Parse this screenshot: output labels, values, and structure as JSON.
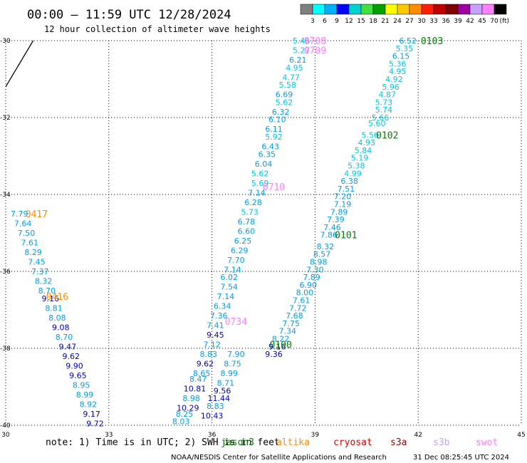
{
  "title": "00:00 – 11:59 UTC 12/28/2024",
  "subtitle": "12 hour collection of altimeter wave heights",
  "footer_note": "note: 1) Time is in UTC; 2) SWH is in feet",
  "footer_credit": "NOAA/NESDIS Center for Satellite Applications and Research",
  "footer_timestamp": "31 Dec 08:25:45 UTC 2024",
  "colorbar": {
    "unit": "(ft)",
    "labels": [
      "3",
      "6",
      "9",
      "12",
      "15",
      "18",
      "21",
      "24",
      "27",
      "30",
      "33",
      "36",
      "39",
      "42",
      "45",
      "70"
    ],
    "colors": [
      "#808080",
      "#00ffff",
      "#00b0ff",
      "#0000ff",
      "#00d0d0",
      "#40e040",
      "#00a000",
      "#ffff00",
      "#ffc800",
      "#ff8c00",
      "#ff2000",
      "#c00000",
      "#800000",
      "#a000a0",
      "#c8a0ff",
      "#ff80ff",
      "#000000"
    ]
  },
  "satellites": [
    {
      "name": "jason3",
      "color": "#008000"
    },
    {
      "name": "altika",
      "color": "#ff8c00"
    },
    {
      "name": "cryosat",
      "color": "#e00000"
    },
    {
      "name": "s3a",
      "color": "#a00000"
    },
    {
      "name": "s3b",
      "color": "#c8a0ff"
    },
    {
      "name": "swot",
      "color": "#ff80ff"
    }
  ],
  "chart_data": {
    "type": "scatter",
    "title": "00:00 – 11:59 UTC 12/28/2024",
    "subtitle": "12 hour collection of altimeter wave heights",
    "xlim": [
      30,
      45
    ],
    "ylim": [
      -40,
      -30
    ],
    "x_ticks": [
      "30",
      "33",
      "36",
      "39",
      "42",
      "45"
    ],
    "y_ticks": [
      "-30",
      "-32",
      "-34",
      "-36",
      "-38",
      "-40"
    ],
    "grid": true,
    "unit": "ft",
    "tracks": [
      {
        "id": "0708",
        "satellite": "swot",
        "label_lon": 39.0,
        "label_lat": -30.0
      },
      {
        "id": "0709",
        "satellite": "swot",
        "label_lon": 39.0,
        "label_lat": -30.25
      },
      {
        "id": "0710",
        "satellite": "swot",
        "label_lon": 37.8,
        "label_lat": -33.8
      },
      {
        "id": "0734",
        "satellite": "swot",
        "label_lon": 36.7,
        "label_lat": -37.3
      },
      {
        "id": "0103",
        "satellite": "jason3",
        "label_lon": 42.4,
        "label_lat": -30.0
      },
      {
        "id": "0102",
        "satellite": "jason3",
        "label_lon": 41.1,
        "label_lat": -32.45
      },
      {
        "id": "0101",
        "satellite": "jason3",
        "label_lon": 39.9,
        "label_lat": -35.05
      },
      {
        "id": "0100",
        "satellite": "jason3",
        "label_lon": 38.0,
        "label_lat": -37.9
      },
      {
        "id": "0417",
        "satellite": "altika",
        "label_lon": 30.9,
        "label_lat": -34.5
      },
      {
        "id": "0416",
        "satellite": "altika",
        "label_lon": 31.5,
        "label_lat": -36.65
      }
    ],
    "points": [
      {
        "lon": 38.6,
        "lat": -30.0,
        "swh": "5.46"
      },
      {
        "lon": 38.6,
        "lat": -30.25,
        "swh": "5.27"
      },
      {
        "lon": 38.5,
        "lat": -30.5,
        "swh": "6.21"
      },
      {
        "lon": 38.4,
        "lat": -30.7,
        "swh": "4.95"
      },
      {
        "lon": 38.3,
        "lat": -30.95,
        "swh": "4.77"
      },
      {
        "lon": 38.2,
        "lat": -31.15,
        "swh": "5.58"
      },
      {
        "lon": 38.1,
        "lat": -31.4,
        "swh": "6.69"
      },
      {
        "lon": 38.1,
        "lat": -31.6,
        "swh": "5.62"
      },
      {
        "lon": 38.0,
        "lat": -31.85,
        "swh": "6.32"
      },
      {
        "lon": 37.9,
        "lat": -32.05,
        "swh": "6.10"
      },
      {
        "lon": 37.8,
        "lat": -32.3,
        "swh": "6.11"
      },
      {
        "lon": 37.8,
        "lat": -32.5,
        "swh": "5.92"
      },
      {
        "lon": 37.7,
        "lat": -32.75,
        "swh": "6.43"
      },
      {
        "lon": 37.6,
        "lat": -32.95,
        "swh": "6.35"
      },
      {
        "lon": 37.5,
        "lat": -33.2,
        "swh": "6.04"
      },
      {
        "lon": 37.4,
        "lat": -33.45,
        "swh": "5.62"
      },
      {
        "lon": 37.4,
        "lat": -33.7,
        "swh": "5.69"
      },
      {
        "lon": 37.3,
        "lat": -33.95,
        "swh": "7.14"
      },
      {
        "lon": 37.2,
        "lat": -34.2,
        "swh": "6.28"
      },
      {
        "lon": 37.1,
        "lat": -34.45,
        "swh": "5.73"
      },
      {
        "lon": 37.0,
        "lat": -34.7,
        "swh": "6.78"
      },
      {
        "lon": 37.0,
        "lat": -34.95,
        "swh": "6.60"
      },
      {
        "lon": 36.9,
        "lat": -35.2,
        "swh": "6.25"
      },
      {
        "lon": 36.8,
        "lat": -35.45,
        "swh": "6.29"
      },
      {
        "lon": 36.7,
        "lat": -35.7,
        "swh": "7.70"
      },
      {
        "lon": 36.6,
        "lat": -35.95,
        "swh": "7.14"
      },
      {
        "lon": 36.5,
        "lat": -36.15,
        "swh": "6.02"
      },
      {
        "lon": 36.5,
        "lat": -36.4,
        "swh": "7.54"
      },
      {
        "lon": 36.4,
        "lat": -36.65,
        "swh": "7.14"
      },
      {
        "lon": 36.3,
        "lat": -36.9,
        "swh": "6.34"
      },
      {
        "lon": 36.2,
        "lat": -37.15,
        "swh": "7.36"
      },
      {
        "lon": 36.1,
        "lat": -37.4,
        "swh": "7.41"
      },
      {
        "lon": 36.1,
        "lat": -37.65,
        "swh": "9.45"
      },
      {
        "lon": 36.0,
        "lat": -37.9,
        "swh": "7.12"
      },
      {
        "lon": 35.9,
        "lat": -38.15,
        "swh": "8.83"
      },
      {
        "lon": 35.8,
        "lat": -38.4,
        "swh": "9.62"
      },
      {
        "lon": 35.7,
        "lat": -38.65,
        "swh": "8.65"
      },
      {
        "lon": 35.6,
        "lat": -38.8,
        "swh": "8.47"
      },
      {
        "lon": 35.5,
        "lat": -39.05,
        "swh": "10.81"
      },
      {
        "lon": 35.4,
        "lat": -39.3,
        "swh": "8.98"
      },
      {
        "lon": 35.3,
        "lat": -39.55,
        "swh": "10.29"
      },
      {
        "lon": 35.2,
        "lat": -39.7,
        "swh": "8.25"
      },
      {
        "lon": 35.1,
        "lat": -39.9,
        "swh": "8.03"
      },
      {
        "lon": 41.7,
        "lat": -30.0,
        "swh": "6.52"
      },
      {
        "lon": 41.6,
        "lat": -30.2,
        "swh": "5.35"
      },
      {
        "lon": 41.5,
        "lat": -30.4,
        "swh": "6.15"
      },
      {
        "lon": 41.4,
        "lat": -30.6,
        "swh": "5.36"
      },
      {
        "lon": 41.4,
        "lat": -30.8,
        "swh": "4.95"
      },
      {
        "lon": 41.3,
        "lat": -31.0,
        "swh": "4.92"
      },
      {
        "lon": 41.2,
        "lat": -31.2,
        "swh": "5.96"
      },
      {
        "lon": 41.1,
        "lat": -31.4,
        "swh": "4.87"
      },
      {
        "lon": 41.0,
        "lat": -31.6,
        "swh": "5.73"
      },
      {
        "lon": 41.0,
        "lat": -31.8,
        "swh": "5.74"
      },
      {
        "lon": 40.9,
        "lat": -32.0,
        "swh": "5.66"
      },
      {
        "lon": 40.8,
        "lat": -32.15,
        "swh": "5.60"
      },
      {
        "lon": 40.6,
        "lat": -32.45,
        "swh": "5.56"
      },
      {
        "lon": 40.5,
        "lat": -32.65,
        "swh": "4.93"
      },
      {
        "lon": 40.4,
        "lat": -32.85,
        "swh": "5.84"
      },
      {
        "lon": 40.3,
        "lat": -33.05,
        "swh": "5.19"
      },
      {
        "lon": 40.2,
        "lat": -33.25,
        "swh": "5.38"
      },
      {
        "lon": 40.1,
        "lat": -33.45,
        "swh": "4.99"
      },
      {
        "lon": 40.0,
        "lat": -33.65,
        "swh": "6.38"
      },
      {
        "lon": 39.9,
        "lat": -33.85,
        "swh": "7.51"
      },
      {
        "lon": 39.8,
        "lat": -34.05,
        "swh": "7.20"
      },
      {
        "lon": 39.8,
        "lat": -34.25,
        "swh": "7.19"
      },
      {
        "lon": 39.7,
        "lat": -34.45,
        "swh": "7.89"
      },
      {
        "lon": 39.6,
        "lat": -34.65,
        "swh": "7.39"
      },
      {
        "lon": 39.5,
        "lat": -34.85,
        "swh": "7.46"
      },
      {
        "lon": 39.4,
        "lat": -35.05,
        "swh": "7.86"
      },
      {
        "lon": 39.3,
        "lat": -35.35,
        "swh": "8.32"
      },
      {
        "lon": 39.2,
        "lat": -35.55,
        "swh": "8.57"
      },
      {
        "lon": 39.1,
        "lat": -35.75,
        "swh": "8.98"
      },
      {
        "lon": 39.0,
        "lat": -35.95,
        "swh": "7.30"
      },
      {
        "lon": 38.9,
        "lat": -36.15,
        "swh": "7.89"
      },
      {
        "lon": 38.8,
        "lat": -36.35,
        "swh": "6.90"
      },
      {
        "lon": 38.7,
        "lat": -36.55,
        "swh": "8.00"
      },
      {
        "lon": 38.6,
        "lat": -36.75,
        "swh": "7.61"
      },
      {
        "lon": 38.5,
        "lat": -36.95,
        "swh": "7.72"
      },
      {
        "lon": 38.4,
        "lat": -37.15,
        "swh": "7.68"
      },
      {
        "lon": 38.3,
        "lat": -37.35,
        "swh": "7.75"
      },
      {
        "lon": 38.2,
        "lat": -37.55,
        "swh": "7.34"
      },
      {
        "lon": 38.0,
        "lat": -37.75,
        "swh": "8.22"
      },
      {
        "lon": 37.9,
        "lat": -37.95,
        "swh": "9.16"
      },
      {
        "lon": 37.8,
        "lat": -38.15,
        "swh": "9.36"
      },
      {
        "lon": 36.7,
        "lat": -38.15,
        "swh": "7.90"
      },
      {
        "lon": 36.6,
        "lat": -38.4,
        "swh": "8.75"
      },
      {
        "lon": 36.5,
        "lat": -38.65,
        "swh": "8.99"
      },
      {
        "lon": 36.4,
        "lat": -38.9,
        "swh": "8.71"
      },
      {
        "lon": 36.3,
        "lat": -39.1,
        "swh": "9.56"
      },
      {
        "lon": 36.2,
        "lat": -39.3,
        "swh": "11.44"
      },
      {
        "lon": 36.1,
        "lat": -39.5,
        "swh": "8.83"
      },
      {
        "lon": 36.0,
        "lat": -39.75,
        "swh": "10.43"
      },
      {
        "lon": 30.4,
        "lat": -34.5,
        "swh": "7.79"
      },
      {
        "lon": 30.5,
        "lat": -34.75,
        "swh": "7.64"
      },
      {
        "lon": 30.6,
        "lat": -35.0,
        "swh": "7.50"
      },
      {
        "lon": 30.7,
        "lat": -35.25,
        "swh": "7.61"
      },
      {
        "lon": 30.8,
        "lat": -35.5,
        "swh": "8.29"
      },
      {
        "lon": 30.9,
        "lat": -35.75,
        "swh": "7.45"
      },
      {
        "lon": 31.0,
        "lat": -36.0,
        "swh": "7.37"
      },
      {
        "lon": 31.1,
        "lat": -36.25,
        "swh": "8.32"
      },
      {
        "lon": 31.2,
        "lat": -36.5,
        "swh": "8.70"
      },
      {
        "lon": 31.3,
        "lat": -36.7,
        "swh": "9.16"
      },
      {
        "lon": 31.4,
        "lat": -36.95,
        "swh": "8.81"
      },
      {
        "lon": 31.5,
        "lat": -37.2,
        "swh": "8.08"
      },
      {
        "lon": 31.6,
        "lat": -37.45,
        "swh": "9.08"
      },
      {
        "lon": 31.7,
        "lat": -37.7,
        "swh": "8.70"
      },
      {
        "lon": 31.8,
        "lat": -37.95,
        "swh": "9.47"
      },
      {
        "lon": 31.9,
        "lat": -38.2,
        "swh": "9.62"
      },
      {
        "lon": 32.0,
        "lat": -38.45,
        "swh": "9.90"
      },
      {
        "lon": 32.1,
        "lat": -38.7,
        "swh": "9.65"
      },
      {
        "lon": 32.2,
        "lat": -38.95,
        "swh": "8.95"
      },
      {
        "lon": 32.3,
        "lat": -39.2,
        "swh": "8.99"
      },
      {
        "lon": 32.4,
        "lat": -39.45,
        "swh": "8.92"
      },
      {
        "lon": 32.5,
        "lat": -39.7,
        "swh": "9.17"
      },
      {
        "lon": 32.6,
        "lat": -39.95,
        "swh": "9.72"
      }
    ],
    "coastline": [
      [
        30.0,
        -31.2
      ],
      [
        30.2,
        -30.9
      ],
      [
        30.4,
        -30.6
      ],
      [
        30.6,
        -30.3
      ],
      [
        30.8,
        -30.0
      ]
    ]
  }
}
